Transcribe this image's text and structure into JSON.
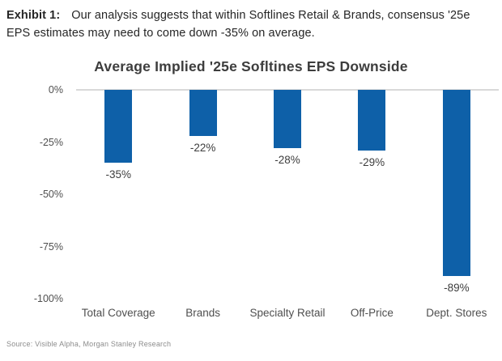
{
  "header": {
    "exhibit_label": "Exhibit 1:",
    "caption": "Our analysis suggests that within Softlines Retail & Brands, consensus '25e EPS estimates may need to come down -35% on average."
  },
  "chart_data": {
    "type": "bar",
    "title": "Average Implied '25e Sofltines EPS Downside",
    "categories": [
      "Total Coverage",
      "Brands",
      "Specialty Retail",
      "Off-Price",
      "Dept. Stores"
    ],
    "values": [
      -35,
      -22,
      -28,
      -29,
      -89
    ],
    "value_labels": [
      "-35%",
      "-22%",
      "-28%",
      "-29%",
      "-89%"
    ],
    "xlabel": "",
    "ylabel": "",
    "ylim": [
      -100,
      0
    ],
    "yticks": [
      "0%",
      "-25%",
      "-50%",
      "-75%",
      "-100%"
    ],
    "grid": "zero-line-only",
    "legend": "none",
    "bar_color": "#0e60a8",
    "gridline_color": "#d9d9d9"
  },
  "footer": {
    "source": "Source: Visible Alpha, Morgan Stanley Research"
  }
}
